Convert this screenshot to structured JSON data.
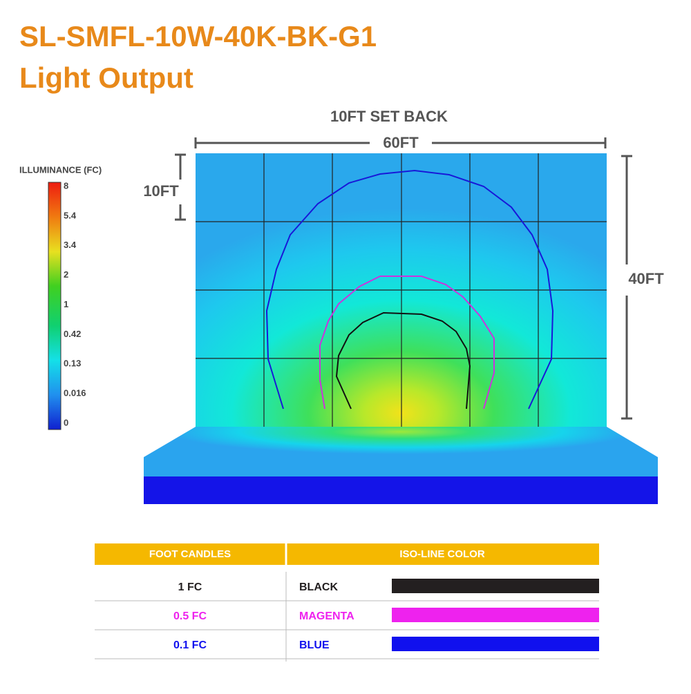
{
  "header": {
    "title": "SL-SMFL-10W-40K-BK-G1",
    "subtitle": "Light Output"
  },
  "diagram": {
    "setback_label": "10FT SET BACK",
    "width_label": "60FT",
    "grid_label": "10FT",
    "height_label": "40FT"
  },
  "scale": {
    "title": "ILLUMINANCE (FC)",
    "labels": [
      8,
      5.4,
      3.4,
      2,
      1,
      0.42,
      0.13,
      0.016,
      0
    ]
  },
  "table": {
    "headers": [
      "FOOT CANDLES",
      "ISO-LINE COLOR"
    ],
    "rows": [
      {
        "level": "1 FC",
        "color_name": "BLACK",
        "color": "#231f20"
      },
      {
        "level": "0.5 FC",
        "color_name": "MAGENTA",
        "color": "#ee22ee"
      },
      {
        "level": "0.1 FC",
        "color_name": "BLUE",
        "color": "#1010ee"
      }
    ]
  }
}
